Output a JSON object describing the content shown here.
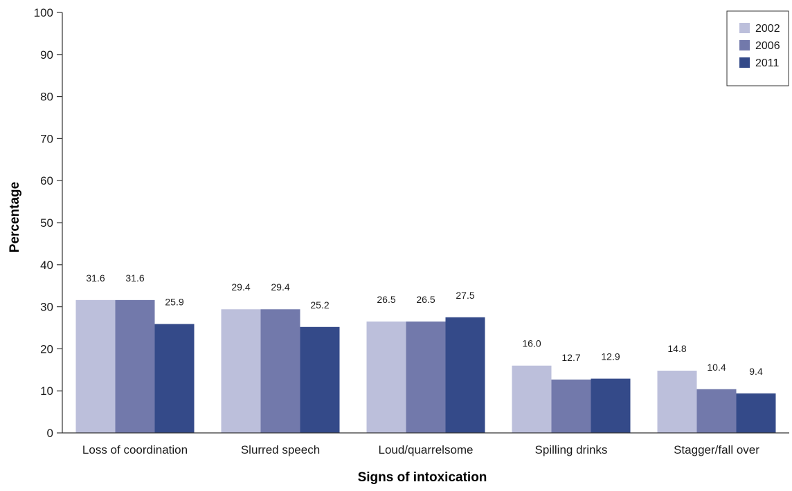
{
  "chart_data": {
    "type": "bar",
    "title": "",
    "xlabel": "Signs of intoxication",
    "ylabel": "Percentage",
    "ylim": [
      0,
      100
    ],
    "yticks": [
      0,
      10,
      20,
      30,
      40,
      50,
      60,
      70,
      80,
      90,
      100
    ],
    "grid": false,
    "legend_position": "top-right",
    "categories": [
      "Loss of coordination",
      "Slurred speech",
      "Loud/quarrelsome",
      "Spilling drinks",
      "Stagger/fall over"
    ],
    "series": [
      {
        "name": "2002",
        "color": "#bcbfdb",
        "values": [
          31.6,
          29.4,
          26.5,
          16.0,
          14.8
        ],
        "labels": [
          "31.6",
          "29.4",
          "26.5",
          "16.0",
          "14.8"
        ]
      },
      {
        "name": "2006",
        "color": "#7279ab",
        "values": [
          31.6,
          29.4,
          26.5,
          12.7,
          10.4
        ],
        "labels": [
          "31.6",
          "29.4",
          "26.5",
          "12.7",
          "10.4"
        ]
      },
      {
        "name": "2011",
        "color": "#344a89",
        "values": [
          25.9,
          25.2,
          27.5,
          12.9,
          9.4
        ],
        "labels": [
          "25.9",
          "25.2",
          "27.5",
          "12.9",
          "9.4"
        ]
      }
    ]
  }
}
